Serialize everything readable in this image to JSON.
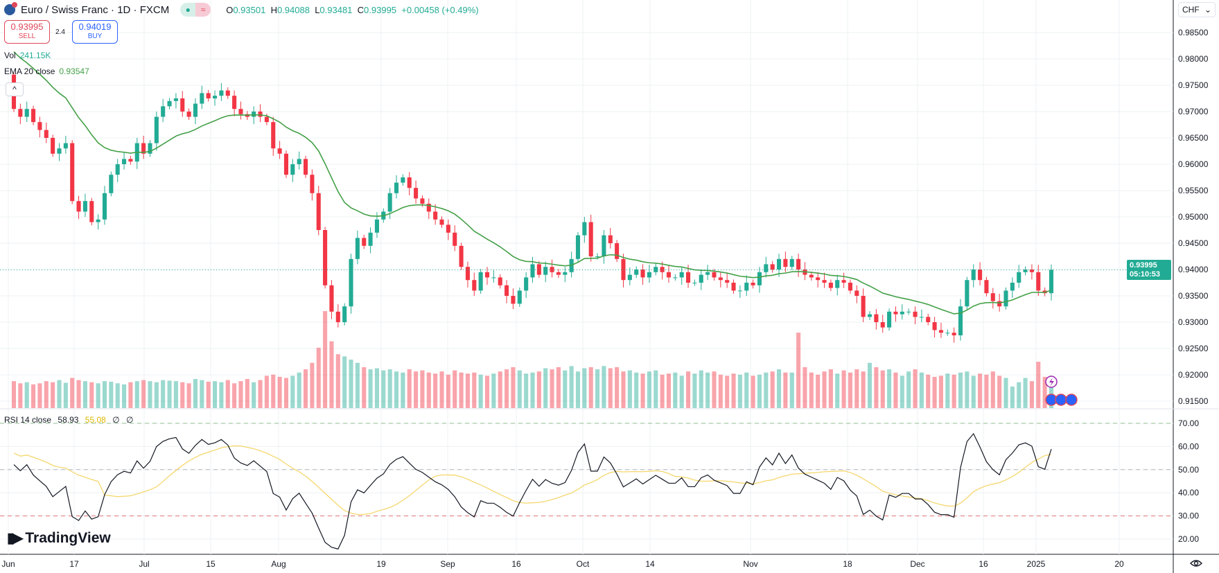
{
  "header": {
    "symbol": "Euro / Swiss Franc · 1D · FXCM",
    "open_label": "O",
    "open": "0.93501",
    "high_label": "H",
    "high": "0.94088",
    "low_label": "L",
    "low": "0.93481",
    "close_label": "C",
    "close": "0.93995",
    "change": "+0.00458 (+0.49%)"
  },
  "trade": {
    "sell_price": "0.93995",
    "sell_label": "SELL",
    "spread": "2.4",
    "buy_price": "0.94019",
    "buy_label": "BUY"
  },
  "indicators": {
    "vol_label": "Vol",
    "vol_value": "241.15K",
    "ema_label": "EMA 20 close",
    "ema_value": "0.93547",
    "rsi_label": "RSI 14 close",
    "rsi_value": "58.93",
    "rsi_ma_value": "55.08",
    "rsi_na1": "∅",
    "rsi_na2": "∅"
  },
  "axis": {
    "currency": "CHF",
    "last_price": "0.93995",
    "countdown": "05:10:53",
    "price_ticks": [
      "0.98500",
      "0.98000",
      "0.97500",
      "0.97000",
      "0.96500",
      "0.96000",
      "0.95500",
      "0.95000",
      "0.94500",
      "0.94000",
      "0.93500",
      "0.93000",
      "0.92500",
      "0.92000",
      "0.91500"
    ],
    "rsi_ticks": [
      "70.00",
      "60.00",
      "50.00",
      "40.00",
      "30.00",
      "20.00"
    ],
    "time_ticks": [
      "Jun",
      "17",
      "Jul",
      "15",
      "Aug",
      "19",
      "Sep",
      "16",
      "Oct",
      "14",
      "Nov",
      "18",
      "Dec",
      "16",
      "2025",
      "20"
    ]
  },
  "logo": "TradingView",
  "colors": {
    "up": "#22ab94",
    "down": "#f23645",
    "ema": "#43a047",
    "rsi": "#131722",
    "rsi_ma": "#f5d76e"
  },
  "chart_data": {
    "type": "candlestick",
    "title": "Euro / Swiss Franc · 1D · FXCM",
    "ylim": [
      0.9125,
      0.9875
    ],
    "first_open": 0.977,
    "close": [
      0.9705,
      0.969,
      0.9705,
      0.968,
      0.9665,
      0.965,
      0.962,
      0.963,
      0.964,
      0.953,
      0.951,
      0.953,
      0.949,
      0.9495,
      0.9545,
      0.958,
      0.96,
      0.961,
      0.9605,
      0.964,
      0.962,
      0.964,
      0.969,
      0.971,
      0.972,
      0.9725,
      0.97,
      0.969,
      0.9715,
      0.9735,
      0.9725,
      0.973,
      0.974,
      0.973,
      0.9705,
      0.9695,
      0.969,
      0.97,
      0.969,
      0.968,
      0.963,
      0.962,
      0.958,
      0.96,
      0.961,
      0.958,
      0.9545,
      0.9475,
      0.937,
      0.932,
      0.93,
      0.933,
      0.942,
      0.946,
      0.9445,
      0.947,
      0.9495,
      0.951,
      0.9545,
      0.9565,
      0.9575,
      0.9555,
      0.9535,
      0.9525,
      0.951,
      0.9495,
      0.9485,
      0.947,
      0.9445,
      0.9405,
      0.938,
      0.936,
      0.9395,
      0.9385,
      0.9385,
      0.937,
      0.935,
      0.9335,
      0.936,
      0.9385,
      0.941,
      0.939,
      0.9405,
      0.9395,
      0.939,
      0.9395,
      0.942,
      0.9465,
      0.949,
      0.9425,
      0.9425,
      0.9465,
      0.945,
      0.942,
      0.938,
      0.939,
      0.94,
      0.9385,
      0.9395,
      0.9405,
      0.9395,
      0.9385,
      0.9385,
      0.9395,
      0.9375,
      0.9375,
      0.939,
      0.9395,
      0.9385,
      0.938,
      0.9375,
      0.936,
      0.936,
      0.9375,
      0.937,
      0.9395,
      0.941,
      0.94,
      0.942,
      0.9405,
      0.942,
      0.94,
      0.939,
      0.9385,
      0.938,
      0.9375,
      0.9365,
      0.938,
      0.9375,
      0.936,
      0.935,
      0.931,
      0.9315,
      0.93,
      0.929,
      0.932,
      0.9315,
      0.932,
      0.932,
      0.931,
      0.931,
      0.93,
      0.9285,
      0.928,
      0.928,
      0.9275,
      0.933,
      0.938,
      0.94,
      0.938,
      0.9355,
      0.934,
      0.933,
      0.936,
      0.9375,
      0.9395,
      0.94,
      0.9395,
      0.936,
      0.9355,
      0.93995
    ],
    "volume_k": [
      250,
      230,
      240,
      220,
      230,
      250,
      240,
      260,
      235,
      280,
      260,
      250,
      240,
      230,
      250,
      245,
      230,
      220,
      240,
      250,
      260,
      250,
      240,
      260,
      255,
      250,
      240,
      230,
      270,
      260,
      245,
      250,
      240,
      260,
      230,
      250,
      270,
      240,
      260,
      300,
      310,
      290,
      280,
      300,
      330,
      360,
      420,
      560,
      900,
      620,
      500,
      480,
      450,
      420,
      380,
      360,
      370,
      350,
      360,
      340,
      330,
      360,
      340,
      350,
      330,
      320,
      340,
      310,
      350,
      330,
      320,
      330,
      310,
      300,
      320,
      340,
      360,
      380,
      350,
      320,
      330,
      340,
      370,
      360,
      380,
      350,
      390,
      340,
      370,
      380,
      360,
      390,
      370,
      380,
      340,
      350,
      330,
      320,
      340,
      350,
      310,
      320,
      330,
      300,
      340,
      320,
      350,
      330,
      340,
      310,
      300,
      320,
      310,
      330,
      300,
      310,
      330,
      340,
      360,
      330,
      330,
      700,
      380,
      330,
      310,
      340,
      360,
      320,
      350,
      330,
      360,
      340,
      420,
      380,
      350,
      360,
      330,
      300,
      340,
      360,
      330,
      310,
      290,
      300,
      320,
      310,
      330,
      340,
      300,
      320,
      310,
      340,
      300,
      280,
      200,
      240,
      280,
      250,
      430,
      290,
      241
    ],
    "ema_period": 20,
    "rsi_period": 14,
    "rsi_levels": [
      70,
      50,
      30
    ],
    "rsi_ylim": [
      15,
      75
    ]
  }
}
